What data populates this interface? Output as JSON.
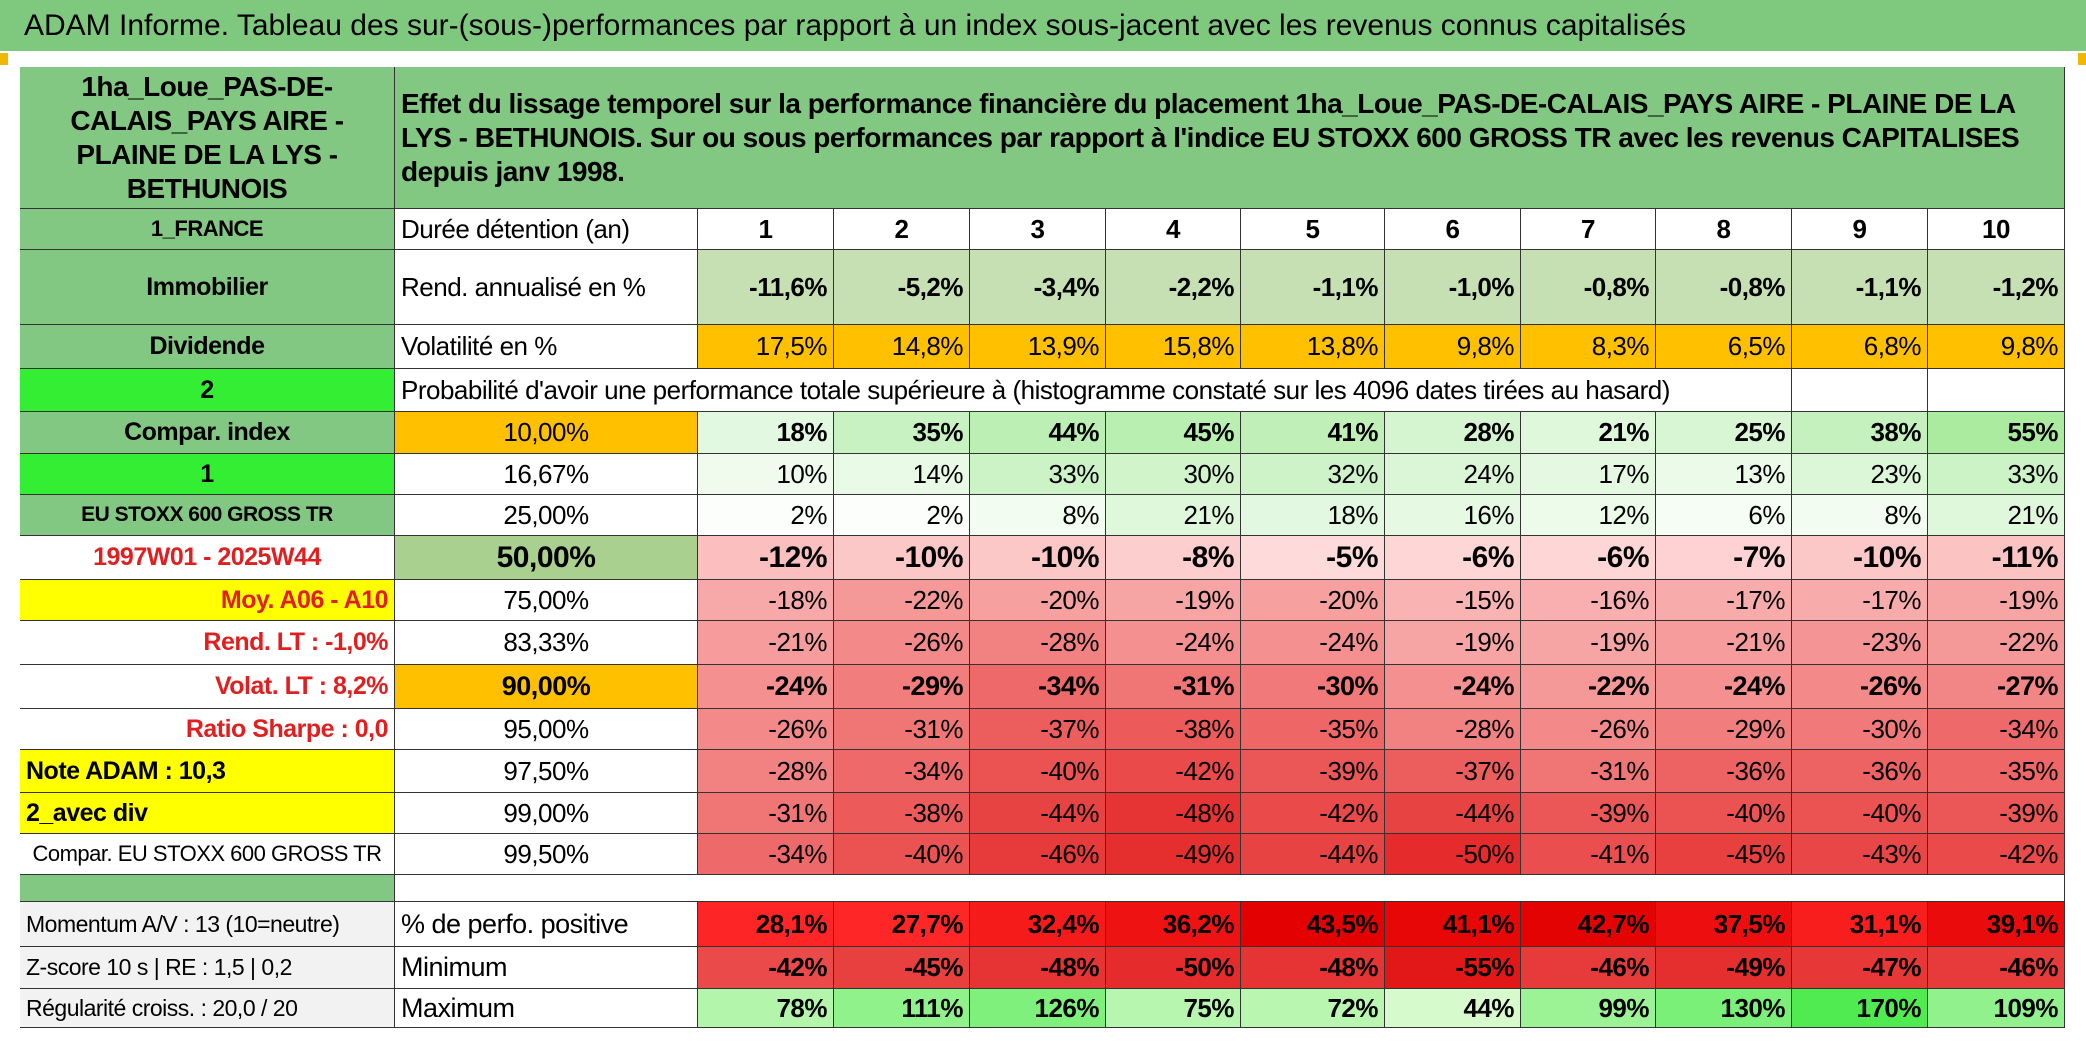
{
  "title": "ADAM Informe. Tableau des sur-(sous-)performances par rapport à un index sous-jacent avec les revenus connus capitalisés",
  "table": {
    "header": [
      "1ha_Loue_PAS-DE-CALAIS_PAYS AIRE - PLAINE DE LA LYS - BETHUNOIS",
      "Effet du lissage temporel sur la performance financière du placement 1ha_Loue_PAS-DE-CALAIS_PAYS AIRE - PLAINE DE LA LYS - BETHUNOIS. Sur ou sous performances par rapport à l'indice EU STOXX 600 GROSS TR avec les revenus CAPITALISES depuis janv 1998."
    ],
    "rows": [
      [
        "1_FRANCE",
        "Durée détention (an)",
        "1",
        "2",
        "3",
        "4",
        "5",
        "6",
        "7",
        "8",
        "9",
        "10"
      ],
      [
        "Immobilier",
        "Rend. annualisé en %",
        "-11,6%",
        "-5,2%",
        "-3,4%",
        "-2,2%",
        "-1,1%",
        "-1,0%",
        "-0,8%",
        "-0,8%",
        "-1,1%",
        "-1,2%"
      ],
      [
        "Dividende",
        "Volatilité en %",
        "17,5%",
        "14,8%",
        "13,9%",
        "15,8%",
        "13,8%",
        "9,8%",
        "8,3%",
        "6,5%",
        "6,8%",
        "9,8%"
      ],
      [
        "2",
        "Probabilité d'avoir une performance totale supérieure à (histogramme constaté sur les 4096 dates tirées au hasard)"
      ],
      [
        "Compar. index",
        "10,00%",
        "18%",
        "35%",
        "44%",
        "45%",
        "41%",
        "28%",
        "21%",
        "25%",
        "38%",
        "55%"
      ],
      [
        "1",
        "16,67%",
        "10%",
        "14%",
        "33%",
        "30%",
        "32%",
        "24%",
        "17%",
        "13%",
        "23%",
        "33%"
      ],
      [
        "EU STOXX 600 GROSS TR",
        "25,00%",
        "2%",
        "2%",
        "8%",
        "21%",
        "18%",
        "16%",
        "12%",
        "6%",
        "8%",
        "21%"
      ],
      [
        "1997W01 - 2025W44",
        "50,00%",
        "-12%",
        "-10%",
        "-10%",
        "-8%",
        "-5%",
        "-6%",
        "-6%",
        "-7%",
        "-10%",
        "-11%"
      ],
      [
        "Moy. A06 - A10",
        "75,00%",
        "-18%",
        "-22%",
        "-20%",
        "-19%",
        "-20%",
        "-15%",
        "-16%",
        "-17%",
        "-17%",
        "-19%"
      ],
      [
        "Rend. LT :   -1,0%",
        "83,33%",
        "-21%",
        "-26%",
        "-28%",
        "-24%",
        "-24%",
        "-19%",
        "-19%",
        "-21%",
        "-23%",
        "-22%"
      ],
      [
        "Volat. LT :   8,2%",
        "90,00%",
        "-24%",
        "-29%",
        "-34%",
        "-31%",
        "-30%",
        "-24%",
        "-22%",
        "-24%",
        "-26%",
        "-27%"
      ],
      [
        "Ratio Sharpe :   0,0",
        "95,00%",
        "-26%",
        "-31%",
        "-37%",
        "-38%",
        "-35%",
        "-28%",
        "-26%",
        "-29%",
        "-30%",
        "-34%"
      ],
      [
        "Note ADAM : 10,3",
        "97,50%",
        "-28%",
        "-34%",
        "-40%",
        "-42%",
        "-39%",
        "-37%",
        "-31%",
        "-36%",
        "-36%",
        "-35%"
      ],
      [
        "2_avec div",
        "99,00%",
        "-31%",
        "-38%",
        "-44%",
        "-48%",
        "-42%",
        "-44%",
        "-39%",
        "-40%",
        "-40%",
        "-39%"
      ],
      [
        "Compar. EU STOXX 600 GROSS TR",
        "99,50%",
        "-34%",
        "-40%",
        "-46%",
        "-49%",
        "-44%",
        "-50%",
        "-41%",
        "-45%",
        "-43%",
        "-42%"
      ],
      [
        "Momentum A/V : 13 (10=neutre)",
        "% de perfo. positive",
        "28,1%",
        "27,7%",
        "32,4%",
        "36,2%",
        "43,5%",
        "41,1%",
        "42,7%",
        "37,5%",
        "31,1%",
        "39,1%"
      ],
      [
        "Z-score 10 s | RE : 1,5 | 0,2",
        "Minimum",
        "-42%",
        "-45%",
        "-48%",
        "-50%",
        "-48%",
        "-55%",
        "-46%",
        "-49%",
        "-47%",
        "-46%"
      ],
      [
        "Régularité croiss. : 20,0 / 20",
        "Maximum",
        "78%",
        "111%",
        "126%",
        "75%",
        "72%",
        "44%",
        "99%",
        "130%",
        "170%",
        "109%"
      ]
    ]
  }
}
